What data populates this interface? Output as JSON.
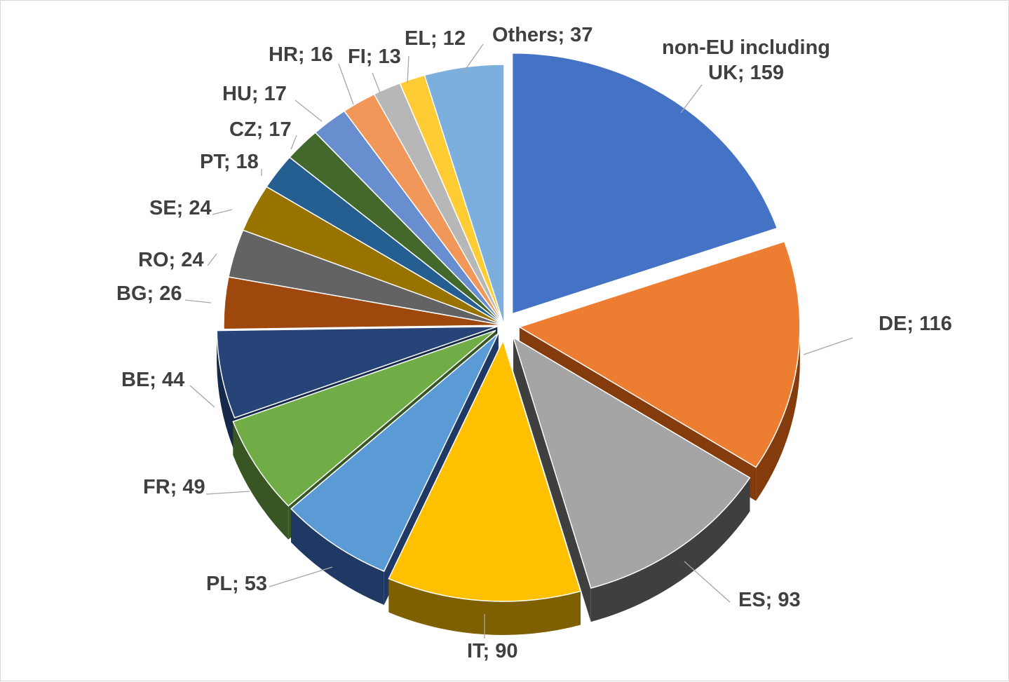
{
  "chart_data": {
    "type": "pie",
    "title": "",
    "label_format": "{name}; {value}",
    "slices": [
      {
        "name": "non-EU including UK",
        "value": 159,
        "color": "#4472C4",
        "side": "#2F528F"
      },
      {
        "name": "DE",
        "value": 116,
        "color": "#ED7D31",
        "side": "#843C0C"
      },
      {
        "name": "ES",
        "value": 93,
        "color": "#A5A5A5",
        "side": "#3F3F3F"
      },
      {
        "name": "IT",
        "value": 90,
        "color": "#FFC000",
        "side": "#7F6000"
      },
      {
        "name": "PL",
        "value": 53,
        "color": "#5B9BD5",
        "side": "#1F3864"
      },
      {
        "name": "FR",
        "value": 49,
        "color": "#70AD47",
        "side": "#375623"
      },
      {
        "name": "BE",
        "value": 44,
        "color": "#264478",
        "side": "#152A4A"
      },
      {
        "name": "BG",
        "value": 26,
        "color": "#9E480E",
        "side": "#5A2808"
      },
      {
        "name": "RO",
        "value": 24,
        "color": "#636363",
        "side": "#3A3A3A"
      },
      {
        "name": "SE",
        "value": 24,
        "color": "#997300",
        "side": "#5C4500"
      },
      {
        "name": "PT",
        "value": 18,
        "color": "#255E91",
        "side": "#173A5A"
      },
      {
        "name": "CZ",
        "value": 17,
        "color": "#43682B",
        "side": "#2A411B"
      },
      {
        "name": "HU",
        "value": 17,
        "color": "#698ED0",
        "side": "#4A6AA6"
      },
      {
        "name": "HR",
        "value": 16,
        "color": "#F1975A",
        "side": "#B8683A"
      },
      {
        "name": "FI",
        "value": 13,
        "color": "#B7B7B7",
        "side": "#7A7A7A"
      },
      {
        "name": "EL",
        "value": 12,
        "color": "#FFCD33",
        "side": "#B38F1F"
      },
      {
        "name": "Others",
        "value": 37,
        "color": "#7CAFDD",
        "side": "#4E7FAA"
      }
    ],
    "data_labels": [
      {
        "lines": [
          "non-EU including",
          "UK; 159"
        ]
      },
      {
        "lines": [
          "DE; 116"
        ]
      },
      {
        "lines": [
          "ES; 93"
        ]
      },
      {
        "lines": [
          "IT; 90"
        ]
      },
      {
        "lines": [
          "PL; 53"
        ]
      },
      {
        "lines": [
          "FR; 49"
        ]
      },
      {
        "lines": [
          "BE; 44"
        ]
      },
      {
        "lines": [
          "BG; 26"
        ]
      },
      {
        "lines": [
          "RO; 24"
        ]
      },
      {
        "lines": [
          "SE; 24"
        ]
      },
      {
        "lines": [
          "PT; 18"
        ]
      },
      {
        "lines": [
          "CZ; 17"
        ]
      },
      {
        "lines": [
          "HU; 17"
        ]
      },
      {
        "lines": [
          "HR; 16"
        ]
      },
      {
        "lines": [
          "FI; 13"
        ]
      },
      {
        "lines": [
          "EL; 12"
        ]
      },
      {
        "lines": [
          "Others; 37"
        ]
      }
    ],
    "legend": "none",
    "style": "3d-exploded-pie"
  }
}
